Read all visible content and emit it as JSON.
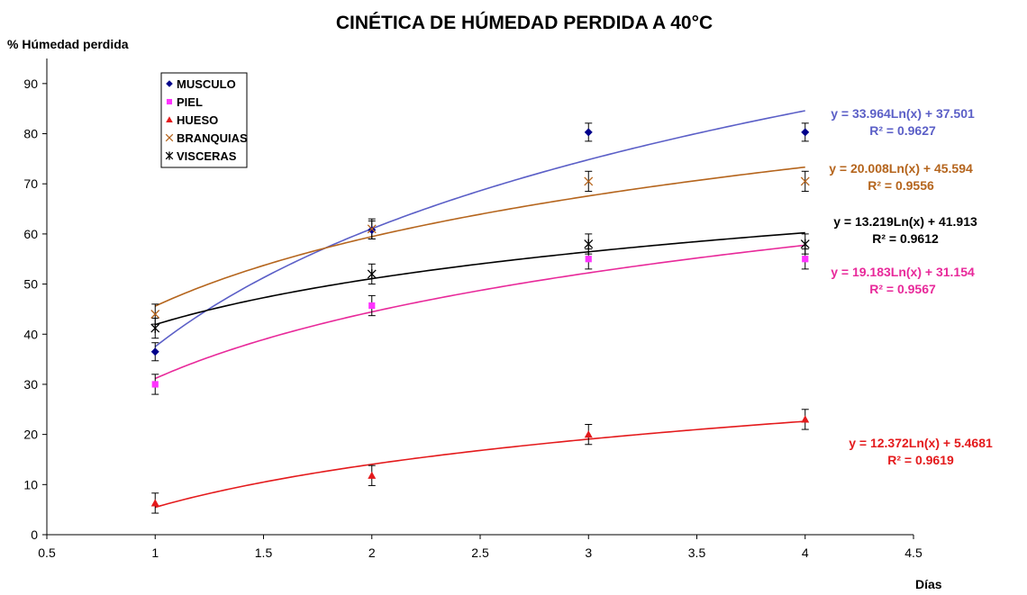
{
  "chart_data": {
    "type": "scatter",
    "title": "CINÉTICA DE HÚMEDAD PERDIDA A 40°C",
    "xlabel": "Días",
    "ylabel": "% Húmedad perdida",
    "xlim": [
      0.5,
      4.5
    ],
    "ylim": [
      0,
      95
    ],
    "x_ticks": [
      "0.5",
      "1",
      "1.5",
      "2",
      "2.5",
      "3",
      "3.5",
      "4",
      "4.5"
    ],
    "y_ticks": [
      "0",
      "10",
      "20",
      "30",
      "40",
      "50",
      "60",
      "70",
      "80",
      "90"
    ],
    "grid": false,
    "legend_position": "top-left",
    "series": [
      {
        "name": "MUSCULO",
        "marker": "diamond",
        "color": "#00008B",
        "trend_color": "#5B5FC7",
        "x": [
          1,
          2,
          3,
          4
        ],
        "y": [
          36.5,
          60.8,
          80.3,
          80.3
        ],
        "err": [
          1.8,
          1.8,
          1.8,
          1.8
        ],
        "trend": {
          "a": 33.964,
          "b": 37.501
        },
        "equation": "y = 33.964Ln(x) + 37.501",
        "r2": "R² = 0.9627"
      },
      {
        "name": "PIEL",
        "marker": "square",
        "color": "#FF33FF",
        "trend_color": "#E8299A",
        "x": [
          1,
          2,
          3,
          4
        ],
        "y": [
          30.0,
          45.7,
          55.0,
          55.0
        ],
        "err": [
          2.0,
          2.0,
          2.0,
          2.0
        ],
        "trend": {
          "a": 19.183,
          "b": 31.154
        },
        "equation": "y = 19.183Ln(x) + 31.154",
        "r2": "R² = 0.9567"
      },
      {
        "name": "HUESO",
        "marker": "triangle",
        "color": "#E41A1C",
        "trend_color": "#E41A1C",
        "x": [
          1,
          2,
          3,
          4
        ],
        "y": [
          6.3,
          11.8,
          20.0,
          23.0
        ],
        "err": [
          2.0,
          2.0,
          2.0,
          2.0
        ],
        "trend": {
          "a": 12.372,
          "b": 5.4681
        },
        "equation": "y = 12.372Ln(x) + 5.4681",
        "r2": "R² = 0.9619"
      },
      {
        "name": "BRANQUIAS",
        "marker": "x",
        "color": "#B5651D",
        "trend_color": "#B5651D",
        "x": [
          1,
          2,
          3,
          4
        ],
        "y": [
          44.0,
          61.0,
          70.5,
          70.5
        ],
        "err": [
          2.0,
          2.0,
          2.0,
          2.0
        ],
        "trend": {
          "a": 20.008,
          "b": 45.594
        },
        "equation": "y = 20.008Ln(x) + 45.594",
        "r2": "R² = 0.9556"
      },
      {
        "name": "VISCERAS",
        "marker": "star",
        "color": "#000000",
        "trend_color": "#000000",
        "x": [
          1,
          2,
          3,
          4
        ],
        "y": [
          41.2,
          52.0,
          58.0,
          58.0
        ],
        "err": [
          2.0,
          2.0,
          2.0,
          2.0
        ],
        "trend": {
          "a": 13.219,
          "b": 41.913
        },
        "equation": "y = 13.219Ln(x) + 41.913",
        "r2": "R² = 0.9612"
      }
    ]
  }
}
